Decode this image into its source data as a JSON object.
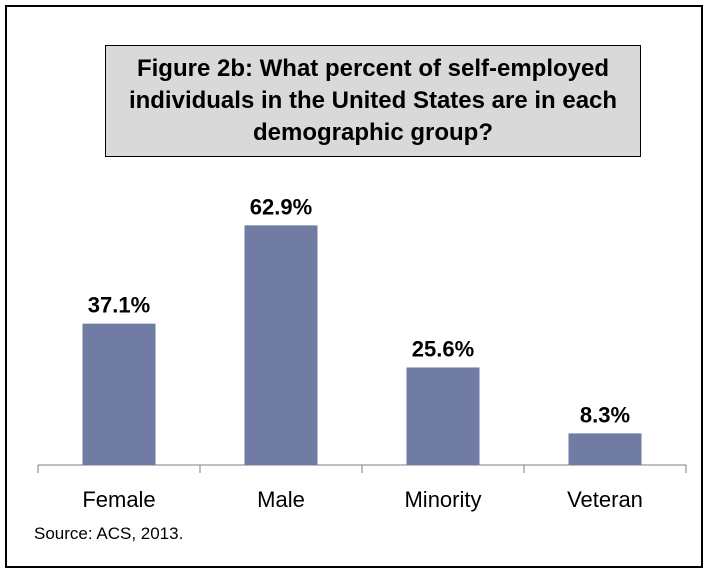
{
  "chart_data": {
    "type": "bar",
    "title": "Figure 2b: What percent of self-employed individuals in the United States are in each demographic group?",
    "categories": [
      "Female",
      "Male",
      "Minority",
      "Veteran"
    ],
    "values": [
      37.1,
      62.9,
      25.6,
      8.3
    ],
    "data_labels": [
      "37.1%",
      "62.9%",
      "25.6%",
      "8.3%"
    ],
    "xlabel": "",
    "ylabel": "",
    "ylim": [
      0,
      70
    ],
    "grid": false,
    "legend": "none",
    "bar_color": "#717ca4"
  },
  "source": "Source: ACS, 2013."
}
